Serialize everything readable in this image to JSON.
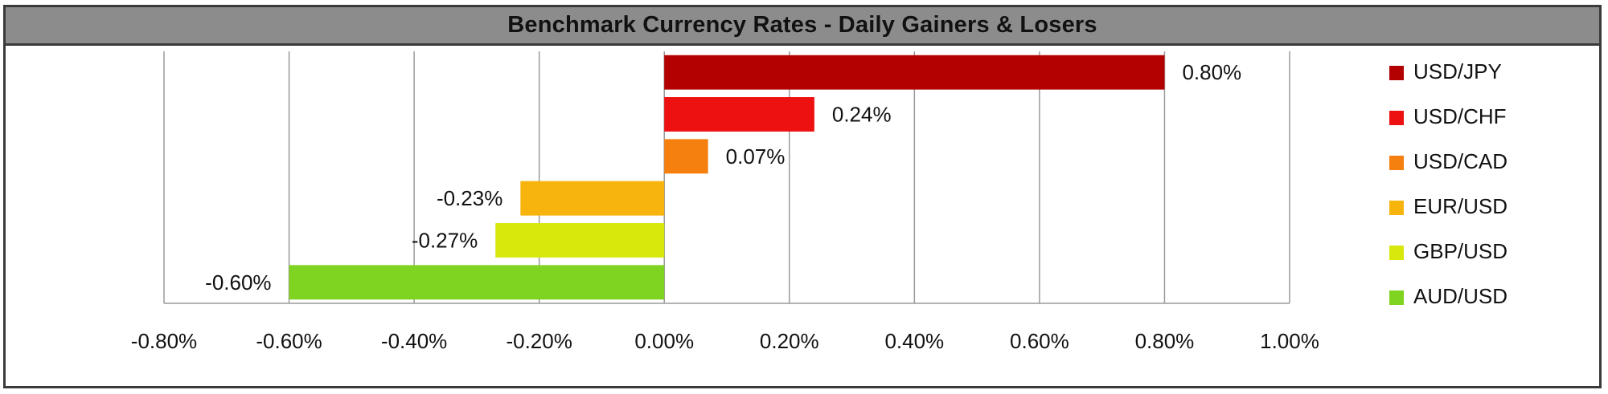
{
  "chart_data": {
    "type": "bar",
    "orientation": "horizontal",
    "title": "Benchmark Currency Rates - Daily Gainers & Losers",
    "categories": [
      "USD/JPY",
      "USD/CHF",
      "USD/CAD",
      "EUR/USD",
      "GBP/USD",
      "AUD/USD"
    ],
    "values": [
      0.8,
      0.24,
      0.07,
      -0.23,
      -0.27,
      -0.6
    ],
    "value_labels": [
      "0.80%",
      "0.24%",
      "0.07%",
      "-0.23%",
      "-0.27%",
      "-0.60%"
    ],
    "colors": [
      "#b30000",
      "#ee1111",
      "#f5800f",
      "#f6b40d",
      "#d8e80d",
      "#7fd321"
    ],
    "xlim": [
      -0.8,
      1.0
    ],
    "xticks": [
      -0.8,
      -0.6,
      -0.4,
      -0.2,
      0.0,
      0.2,
      0.4,
      0.6,
      0.8,
      1.0
    ],
    "xtick_labels": [
      "-0.80%",
      "-0.60%",
      "-0.40%",
      "-0.20%",
      "0.00%",
      "0.20%",
      "0.40%",
      "0.60%",
      "0.80%",
      "1.00%"
    ],
    "xlabel": "",
    "ylabel": "",
    "grid": "vertical",
    "legend": "right"
  }
}
